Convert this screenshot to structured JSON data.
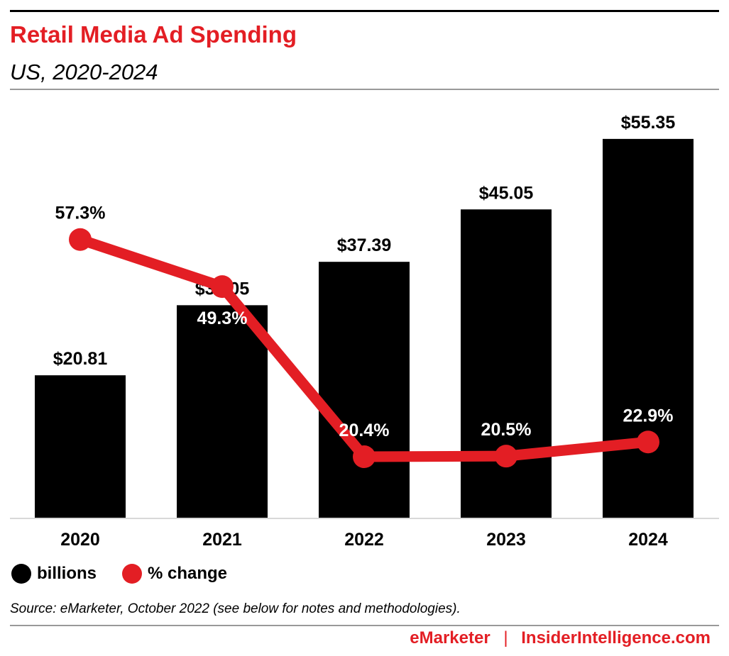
{
  "header": {
    "title": "Retail Media Ad Spending",
    "subtitle": "US, 2020-2024"
  },
  "chart_data": {
    "type": "bar",
    "categories": [
      "2020",
      "2021",
      "2022",
      "2023",
      "2024"
    ],
    "series": [
      {
        "name": "billions",
        "type": "bar",
        "values": [
          20.81,
          31.05,
          37.39,
          45.05,
          55.35
        ],
        "labels": [
          "$20.81",
          "$31.05",
          "$37.39",
          "$45.05",
          "$55.35"
        ],
        "color": "#000000"
      },
      {
        "name": "% change",
        "type": "line",
        "values": [
          57.3,
          49.3,
          20.4,
          20.5,
          22.9
        ],
        "labels": [
          "57.3%",
          "49.3%",
          "20.4%",
          "20.5%",
          "22.9%"
        ],
        "color": "#e31e24"
      }
    ],
    "legend": "bottom-left",
    "grid": false
  },
  "legend": {
    "items": [
      {
        "label": "billions",
        "color": "#000000"
      },
      {
        "label": "% change",
        "color": "#e31e24"
      }
    ]
  },
  "source": "Source: eMarketer, October 2022 (see below for notes and methodologies).",
  "footer": {
    "brand1": "eMarketer",
    "separator": "|",
    "brand2": "InsiderIntelligence.com"
  }
}
